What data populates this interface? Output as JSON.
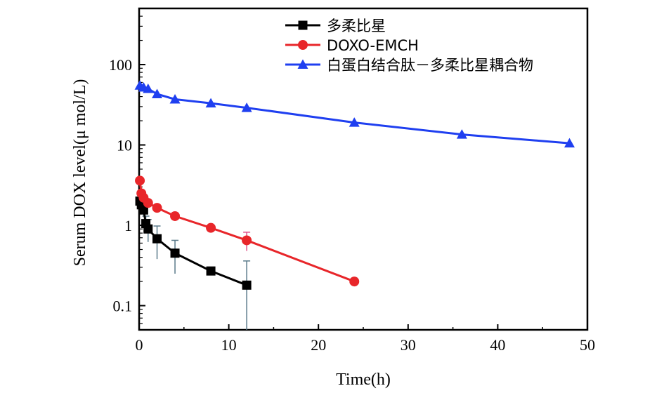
{
  "chart_data": {
    "type": "line",
    "xlabel": "Time(h)",
    "ylabel": "Serum DOX level(μ mol/L)",
    "xlim": [
      0,
      50
    ],
    "ylim": [
      0.05,
      500
    ],
    "yscale": "log",
    "x_ticks": [
      "0",
      "10",
      "20",
      "30",
      "40",
      "50"
    ],
    "y_ticks": [
      "0.1",
      "1",
      "10",
      "100"
    ],
    "legend_position": "top-center",
    "series": [
      {
        "name": "多柔比星",
        "color": "#000000",
        "marker": "square",
        "x": [
          0.083,
          0.25,
          0.5,
          0.75,
          1,
          2,
          4,
          8,
          12
        ],
        "y": [
          2.0,
          1.8,
          1.55,
          1.05,
          0.9,
          0.68,
          0.45,
          0.27,
          0.18
        ],
        "err": [
          0,
          0,
          0,
          0.25,
          0.28,
          0.3,
          0.2,
          0,
          0.18
        ]
      },
      {
        "name": "DOXO-EMCH",
        "color": "#e8262a",
        "marker": "circle",
        "x": [
          0.083,
          0.25,
          0.5,
          1,
          2,
          4,
          8,
          12,
          24
        ],
        "y": [
          3.6,
          2.5,
          2.2,
          1.9,
          1.65,
          1.3,
          0.93,
          0.65,
          0.2
        ],
        "err": [
          0,
          0,
          0,
          0,
          0,
          0.12,
          0,
          0.17,
          0
        ]
      },
      {
        "name": "白蛋白结合肽－多柔比星耦合物",
        "color": "#1f3ff0",
        "marker": "triangle",
        "x": [
          0.083,
          0.5,
          1,
          2,
          4,
          8,
          12,
          24,
          36,
          48
        ],
        "y": [
          55,
          52,
          50,
          43,
          37,
          33,
          29,
          19,
          13.5,
          10.5
        ],
        "err": [
          0,
          0,
          0,
          0,
          0,
          0,
          0,
          0,
          0,
          0
        ]
      }
    ]
  }
}
